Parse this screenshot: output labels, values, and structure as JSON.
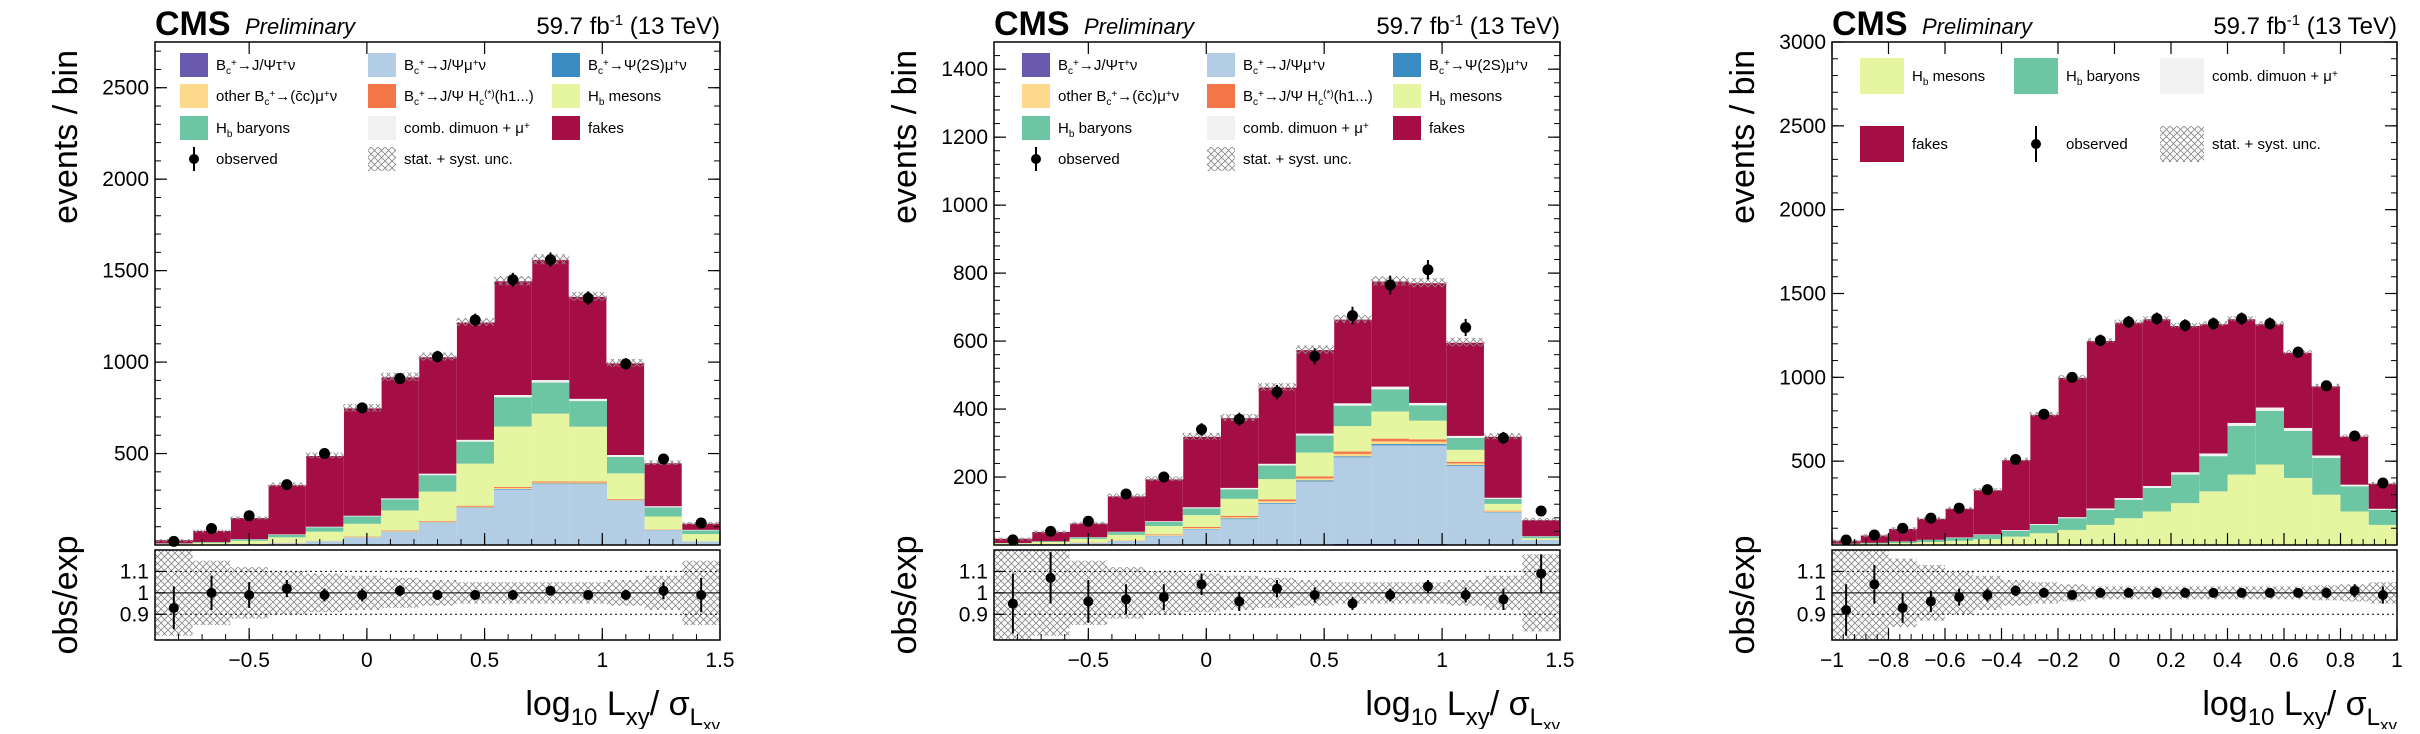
{
  "chart_data": [
    {
      "type": "bar",
      "stacked": true,
      "header": {
        "experiment": "CMS",
        "status": "Preliminary",
        "lumi": "59.7 fb",
        "lumi_sup": "-1",
        "energy": " (13 TeV)"
      },
      "xlabel": "log10 Lxy/ σLxy",
      "ylabel": "events / bin",
      "ratio_ylabel": "obs/exp",
      "xlim": [
        -0.9,
        1.5
      ],
      "ylim": [
        0,
        2750
      ],
      "ratio_ylim": [
        0.78,
        1.2
      ],
      "xticks": [
        -0.5,
        0,
        0.5,
        1,
        1.5
      ],
      "yticks": [
        500,
        1000,
        1500,
        2000,
        2500
      ],
      "ratio_yticks": [
        0.9,
        1,
        1.1
      ],
      "bin_edges": [
        -0.9,
        -0.74,
        -0.58,
        -0.42,
        -0.26,
        -0.1,
        0.06,
        0.22,
        0.38,
        0.54,
        0.7,
        0.86,
        1.02,
        1.18,
        1.34,
        1.5
      ],
      "legend": [
        {
          "label": "Bc+→J/Ψτ+ν",
          "key": "tau",
          "color": "#6a5aad",
          "style": "box"
        },
        {
          "label": "Bc+→J/Ψμ+ν",
          "key": "mu",
          "color": "#b2cde4",
          "style": "box"
        },
        {
          "label": "Bc+→Ψ(2S)μ+ν",
          "key": "psi2s",
          "color": "#3a8bc2",
          "style": "box"
        },
        {
          "label": "other Bc+→(c̄c)μ+ν",
          "key": "ccbar",
          "color": "#fcd98c",
          "style": "box"
        },
        {
          "label": "Bc+→J/Ψ Hc(*)(h1...)",
          "key": "hc",
          "color": "#f4774a",
          "style": "box"
        },
        {
          "label": "Hb mesons",
          "key": "hbm",
          "color": "#e5f5a0",
          "style": "box"
        },
        {
          "label": "Hb baryons",
          "key": "hbb",
          "color": "#6cc5a3",
          "style": "box"
        },
        {
          "label": "comb. dimuon + μ+",
          "key": "comb",
          "color": "#f1f1f1",
          "style": "box"
        },
        {
          "label": "fakes",
          "key": "fakes",
          "color": "#a50e44",
          "style": "box"
        },
        {
          "label": "observed",
          "key": "obs",
          "color": "#000000",
          "style": "marker"
        },
        {
          "label": "stat. + syst. unc.",
          "key": "unc",
          "color": "#888888",
          "style": "hatch"
        }
      ],
      "series": [
        {
          "name": "Bc+→J/Ψτ+ν",
          "key": "tau",
          "values": [
            0,
            0,
            0,
            0,
            1,
            1,
            2,
            2,
            3,
            3,
            3,
            3,
            2,
            1,
            0
          ]
        },
        {
          "name": "Bc+→J/Ψμ+ν",
          "key": "mu",
          "values": [
            1,
            2,
            5,
            10,
            20,
            40,
            70,
            120,
            200,
            300,
            330,
            330,
            240,
            80,
            20
          ]
        },
        {
          "name": "Bc+→Ψ(2S)μ+ν",
          "key": "psi2s",
          "values": [
            0,
            0,
            0,
            0,
            0,
            1,
            1,
            2,
            2,
            3,
            3,
            3,
            2,
            1,
            0
          ]
        },
        {
          "name": "other Bc+→(c̄c)μ+ν",
          "key": "ccbar",
          "values": [
            0,
            0,
            0,
            1,
            1,
            2,
            3,
            4,
            5,
            6,
            6,
            6,
            4,
            2,
            0
          ]
        },
        {
          "name": "Bc+→J/Ψ Hc(*)(h1...)",
          "key": "hc",
          "values": [
            0,
            0,
            0,
            1,
            1,
            2,
            3,
            4,
            5,
            6,
            6,
            5,
            4,
            2,
            0
          ]
        },
        {
          "name": "Hb mesons",
          "key": "hbm",
          "values": [
            6,
            10,
            18,
            30,
            50,
            70,
            110,
            160,
            230,
            330,
            370,
            300,
            140,
            70,
            40
          ]
        },
        {
          "name": "Hb baryons",
          "key": "hbb",
          "values": [
            2,
            4,
            8,
            14,
            24,
            40,
            60,
            90,
            120,
            160,
            170,
            140,
            90,
            50,
            20
          ]
        },
        {
          "name": "comb. dimuon + μ+",
          "key": "comb",
          "values": [
            0,
            0,
            1,
            2,
            3,
            4,
            6,
            8,
            10,
            12,
            14,
            12,
            10,
            6,
            3
          ]
        },
        {
          "name": "fakes",
          "key": "fakes",
          "values": [
            21,
            64,
            118,
            272,
            390,
            590,
            665,
            640,
            645,
            625,
            660,
            561,
            504,
            238,
            37
          ]
        }
      ],
      "observed": [
        20,
        90,
        160,
        330,
        500,
        750,
        910,
        1030,
        1230,
        1450,
        1560,
        1350,
        990,
        470,
        120
      ],
      "ratio": [
        0.93,
        1.0,
        0.99,
        1.02,
        0.99,
        0.99,
        1.01,
        0.99,
        0.99,
        0.99,
        1.01,
        0.99,
        0.99,
        1.01,
        0.99
      ],
      "ratio_err": [
        0.1,
        0.08,
        0.06,
        0.04,
        0.03,
        0.03,
        0.025,
        0.02,
        0.02,
        0.02,
        0.02,
        0.02,
        0.025,
        0.04,
        0.08
      ],
      "unc_rel": [
        0.2,
        0.15,
        0.12,
        0.1,
        0.09,
        0.08,
        0.07,
        0.06,
        0.05,
        0.05,
        0.05,
        0.05,
        0.06,
        0.08,
        0.15
      ]
    },
    {
      "type": "bar",
      "stacked": true,
      "header": {
        "experiment": "CMS",
        "status": "Preliminary",
        "lumi": "59.7 fb",
        "lumi_sup": "-1",
        "energy": " (13 TeV)"
      },
      "xlabel": "log10 Lxy/ σLxy",
      "ylabel": "events / bin",
      "ratio_ylabel": "obs/exp",
      "xlim": [
        -0.9,
        1.5
      ],
      "ylim": [
        0,
        1480
      ],
      "ratio_ylim": [
        0.78,
        1.2
      ],
      "xticks": [
        -0.5,
        0,
        0.5,
        1,
        1.5
      ],
      "yticks": [
        200,
        400,
        600,
        800,
        1000,
        1200,
        1400
      ],
      "ratio_yticks": [
        0.9,
        1,
        1.1
      ],
      "bin_edges": [
        -0.9,
        -0.74,
        -0.58,
        -0.42,
        -0.26,
        -0.1,
        0.06,
        0.22,
        0.38,
        0.54,
        0.7,
        0.86,
        1.02,
        1.18,
        1.34,
        1.5
      ],
      "legend": [
        {
          "label": "Bc+→J/Ψτ+ν",
          "key": "tau",
          "color": "#6a5aad",
          "style": "box"
        },
        {
          "label": "Bc+→J/Ψμ+ν",
          "key": "mu",
          "color": "#b2cde4",
          "style": "box"
        },
        {
          "label": "Bc+→Ψ(2S)μ+ν",
          "key": "psi2s",
          "color": "#3a8bc2",
          "style": "box"
        },
        {
          "label": "other Bc+→(c̄c)μ+ν",
          "key": "ccbar",
          "color": "#fcd98c",
          "style": "box"
        },
        {
          "label": "Bc+→J/Ψ Hc(*)(h1...)",
          "key": "hc",
          "color": "#f4774a",
          "style": "box"
        },
        {
          "label": "Hb mesons",
          "key": "hbm",
          "color": "#e5f5a0",
          "style": "box"
        },
        {
          "label": "Hb baryons",
          "key": "hbb",
          "color": "#6cc5a3",
          "style": "box"
        },
        {
          "label": "comb. dimuon + μ+",
          "key": "comb",
          "color": "#f1f1f1",
          "style": "box"
        },
        {
          "label": "fakes",
          "key": "fakes",
          "color": "#a50e44",
          "style": "box"
        },
        {
          "label": "observed",
          "key": "obs",
          "color": "#000000",
          "style": "marker"
        },
        {
          "label": "stat. + syst. unc.",
          "key": "unc",
          "color": "#888888",
          "style": "hatch"
        }
      ],
      "series": [
        {
          "name": "Bc+→J/Ψτ+ν",
          "key": "tau",
          "values": [
            0,
            0,
            0,
            0,
            1,
            1,
            1,
            2,
            2,
            3,
            3,
            3,
            2,
            1,
            0
          ]
        },
        {
          "name": "Bc+→J/Ψμ+ν",
          "key": "mu",
          "values": [
            1,
            3,
            6,
            12,
            25,
            45,
            75,
            120,
            185,
            255,
            290,
            290,
            230,
            95,
            15
          ]
        },
        {
          "name": "Bc+→Ψ(2S)μ+ν",
          "key": "psi2s",
          "values": [
            0,
            0,
            0,
            0,
            1,
            1,
            2,
            2,
            3,
            3,
            4,
            4,
            3,
            1,
            0
          ]
        },
        {
          "name": "other Bc+→(c̄c)μ+ν",
          "key": "ccbar",
          "values": [
            0,
            0,
            1,
            1,
            2,
            3,
            4,
            5,
            6,
            7,
            8,
            7,
            5,
            2,
            0
          ]
        },
        {
          "name": "Bc+→J/Ψ Hc(*)(h1...)",
          "key": "hc",
          "values": [
            0,
            0,
            1,
            1,
            2,
            3,
            4,
            5,
            6,
            7,
            8,
            7,
            5,
            2,
            0
          ]
        },
        {
          "name": "Hb mesons",
          "key": "hbm",
          "values": [
            4,
            6,
            10,
            16,
            25,
            35,
            50,
            60,
            70,
            75,
            80,
            55,
            35,
            20,
            5
          ]
        },
        {
          "name": "Hb baryons",
          "key": "hbb",
          "values": [
            1,
            2,
            4,
            8,
            12,
            20,
            28,
            40,
            50,
            60,
            65,
            45,
            35,
            15,
            5
          ]
        },
        {
          "name": "comb. dimuon + μ+",
          "key": "comb",
          "values": [
            0,
            0,
            1,
            1,
            2,
            3,
            4,
            5,
            6,
            7,
            8,
            7,
            6,
            3,
            1
          ]
        },
        {
          "name": "fakes",
          "key": "fakes",
          "values": [
            14,
            29,
            42,
            106,
            125,
            209,
            207,
            226,
            247,
            248,
            311,
            354,
            276,
            181,
            49
          ]
        }
      ],
      "observed": [
        15,
        40,
        70,
        150,
        200,
        340,
        370,
        450,
        555,
        675,
        765,
        810,
        640,
        315,
        100
      ],
      "ratio": [
        0.95,
        1.07,
        0.96,
        0.97,
        0.98,
        1.04,
        0.96,
        1.02,
        0.99,
        0.95,
        0.99,
        1.03,
        0.99,
        0.97,
        1.09
      ],
      "ratio_err": [
        0.14,
        0.12,
        0.1,
        0.07,
        0.06,
        0.05,
        0.045,
        0.04,
        0.035,
        0.03,
        0.03,
        0.03,
        0.035,
        0.05,
        0.09
      ],
      "unc_rel": [
        0.25,
        0.2,
        0.15,
        0.12,
        0.1,
        0.09,
        0.08,
        0.07,
        0.06,
        0.05,
        0.05,
        0.05,
        0.06,
        0.08,
        0.18
      ]
    },
    {
      "type": "bar",
      "stacked": true,
      "header": {
        "experiment": "CMS",
        "status": "Preliminary",
        "lumi": "59.7 fb",
        "lumi_sup": "-1",
        "energy": " (13 TeV)"
      },
      "xlabel": "log10 Lxy/ σLxy",
      "ylabel": "events / bin",
      "ratio_ylabel": "obs/exp",
      "xlim": [
        -1,
        1
      ],
      "ylim": [
        0,
        3000
      ],
      "ratio_ylim": [
        0.78,
        1.2
      ],
      "xticks": [
        -1,
        -0.8,
        -0.6,
        -0.4,
        -0.2,
        0,
        0.2,
        0.4,
        0.6,
        0.8,
        1
      ],
      "yticks": [
        500,
        1000,
        1500,
        2000,
        2500,
        3000
      ],
      "ratio_yticks": [
        0.9,
        1,
        1.1
      ],
      "bin_edges": [
        -1,
        -0.9,
        -0.8,
        -0.7,
        -0.6,
        -0.5,
        -0.4,
        -0.3,
        -0.2,
        -0.1,
        0,
        0.1,
        0.2,
        0.3,
        0.4,
        0.5,
        0.6,
        0.7,
        0.8,
        0.9,
        1
      ],
      "legend": [
        {
          "label": "Hb mesons",
          "key": "hbm",
          "color": "#e5f5a0",
          "style": "box"
        },
        {
          "label": "Hb baryons",
          "key": "hbb",
          "color": "#6cc5a3",
          "style": "box"
        },
        {
          "label": "comb. dimuon + μ+",
          "key": "comb",
          "color": "#f1f1f1",
          "style": "box"
        },
        {
          "label": "fakes",
          "key": "fakes",
          "color": "#a50e44",
          "style": "box"
        },
        {
          "label": "observed",
          "key": "obs",
          "color": "#000000",
          "style": "marker"
        },
        {
          "label": "stat. + syst. unc.",
          "key": "unc",
          "color": "#888888",
          "style": "hatch"
        }
      ],
      "series": [
        {
          "name": "Hb mesons",
          "key": "hbm",
          "values": [
            5,
            8,
            12,
            18,
            25,
            35,
            50,
            70,
            90,
            120,
            160,
            200,
            250,
            320,
            420,
            480,
            400,
            300,
            200,
            120
          ]
        },
        {
          "name": "Hb baryons",
          "key": "hbb",
          "values": [
            3,
            5,
            8,
            12,
            18,
            25,
            35,
            50,
            70,
            90,
            110,
            140,
            170,
            210,
            290,
            320,
            280,
            220,
            150,
            90
          ]
        },
        {
          "name": "comb. dimuon + μ+",
          "key": "comb",
          "values": [
            0,
            0,
            1,
            1,
            2,
            3,
            4,
            5,
            6,
            8,
            10,
            12,
            14,
            16,
            18,
            20,
            18,
            14,
            10,
            6
          ]
        },
        {
          "name": "fakes",
          "key": "fakes",
          "values": [
            22,
            47,
            79,
            129,
            175,
            267,
            421,
            655,
            834,
            1002,
            1050,
            998,
            876,
            774,
            622,
            500,
            452,
            416,
            290,
            154
          ]
        }
      ],
      "observed": [
        30,
        60,
        100,
        160,
        220,
        330,
        510,
        780,
        1000,
        1220,
        1330,
        1350,
        1310,
        1320,
        1350,
        1320,
        1150,
        950,
        650,
        370
      ],
      "ratio": [
        0.92,
        1.04,
        0.93,
        0.96,
        0.98,
        0.99,
        1.01,
        1.0,
        0.99,
        1.0,
        1.0,
        1.0,
        1.0,
        1.0,
        1.0,
        1.0,
        1.0,
        1.0,
        1.01,
        0.99
      ],
      "ratio_err": [
        0.12,
        0.09,
        0.07,
        0.05,
        0.04,
        0.03,
        0.025,
        0.02,
        0.02,
        0.018,
        0.018,
        0.018,
        0.018,
        0.018,
        0.018,
        0.02,
        0.02,
        0.025,
        0.03,
        0.04
      ],
      "unc_rel": [
        0.3,
        0.22,
        0.16,
        0.13,
        0.1,
        0.08,
        0.06,
        0.05,
        0.04,
        0.03,
        0.03,
        0.03,
        0.03,
        0.03,
        0.03,
        0.03,
        0.03,
        0.035,
        0.04,
        0.05
      ]
    }
  ]
}
